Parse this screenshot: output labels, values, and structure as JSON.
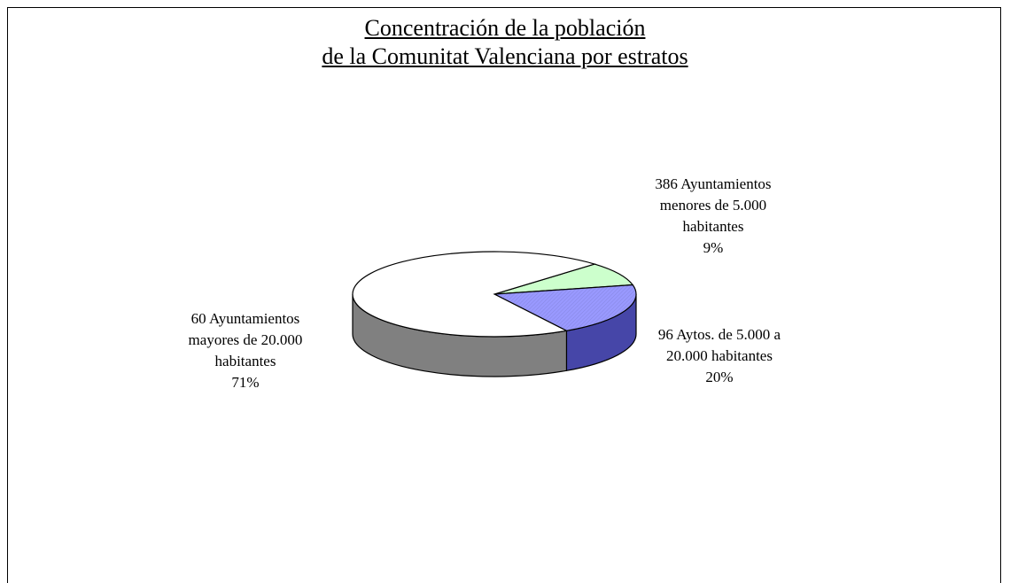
{
  "chart_data": {
    "type": "pie",
    "title": "Concentración de la población\nde la Comunitat Valenciana por estratos",
    "categories": [
      "386 Ayuntamientos\nmenores de 5.000\nhabitantes",
      "96 Aytos. de 5.000 a\n20.000 habitantes",
      "60 Ayuntamientos\nmayores de 20.000\nhabitantes"
    ],
    "values": [
      9,
      20,
      71
    ],
    "value_labels": [
      "9%",
      "20%",
      "71%"
    ],
    "colors": [
      "#ccffcc",
      "#9999ff",
      "#ffffff"
    ],
    "side_colors": [
      "#99cc99",
      "#4646a8",
      "#808080"
    ]
  }
}
